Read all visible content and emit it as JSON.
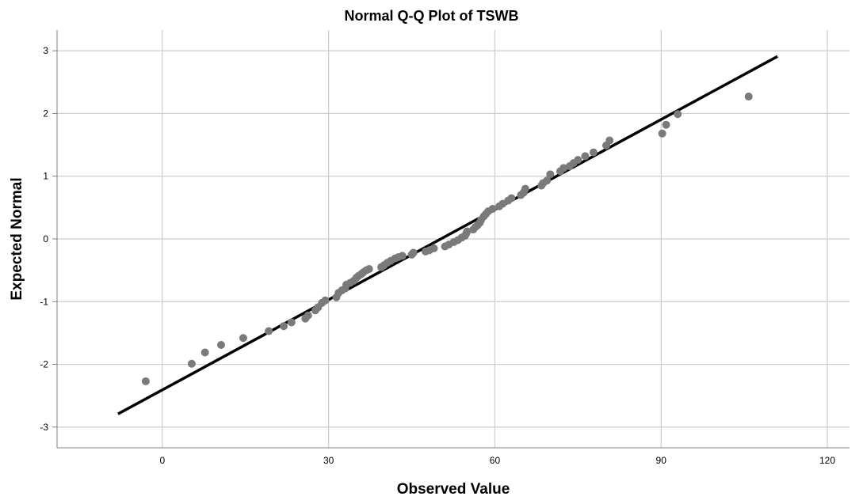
{
  "chart_data": {
    "type": "scatter",
    "title": "Normal Q-Q Plot of TSWB",
    "xlabel": "Observed Value",
    "ylabel": "Expected Normal",
    "xlim": [
      -19,
      124
    ],
    "ylim": [
      -3.33,
      3.33
    ],
    "xticks": [
      0,
      30,
      60,
      90,
      120
    ],
    "yticks": [
      -3,
      -2,
      -1,
      0,
      1,
      2,
      3
    ],
    "grid": true,
    "colors": {
      "points": "#7a7a7a",
      "line": "#000000",
      "grid": "#cccccc",
      "axis": "#808080"
    },
    "reference_line": {
      "x": [
        -8,
        111
      ],
      "y": [
        -2.79,
        2.91
      ]
    },
    "points": [
      [
        -3,
        -2.27
      ],
      [
        5.3,
        -1.99
      ],
      [
        7.7,
        -1.81
      ],
      [
        10.6,
        -1.69
      ],
      [
        14.6,
        -1.58
      ],
      [
        19.2,
        -1.47
      ],
      [
        21.9,
        -1.39
      ],
      [
        23.3,
        -1.33
      ],
      [
        25.8,
        -1.27
      ],
      [
        26.3,
        -1.22
      ],
      [
        27.6,
        -1.14
      ],
      [
        28.1,
        -1.09
      ],
      [
        28.8,
        -1.02
      ],
      [
        29.4,
        -0.98
      ],
      [
        31.4,
        -0.93
      ],
      [
        31.8,
        -0.86
      ],
      [
        32.4,
        -0.82
      ],
      [
        33.0,
        -0.79
      ],
      [
        33.2,
        -0.73
      ],
      [
        33.9,
        -0.7
      ],
      [
        34.5,
        -0.67
      ],
      [
        35.0,
        -0.62
      ],
      [
        35.4,
        -0.59
      ],
      [
        35.9,
        -0.56
      ],
      [
        36.3,
        -0.53
      ],
      [
        36.8,
        -0.5
      ],
      [
        37.3,
        -0.48
      ],
      [
        39.5,
        -0.45
      ],
      [
        40.0,
        -0.42
      ],
      [
        40.6,
        -0.38
      ],
      [
        41.2,
        -0.35
      ],
      [
        42.0,
        -0.31
      ],
      [
        42.6,
        -0.29
      ],
      [
        43.3,
        -0.27
      ],
      [
        45.0,
        -0.25
      ],
      [
        45.3,
        -0.22
      ],
      [
        47.5,
        -0.2
      ],
      [
        48.2,
        -0.18
      ],
      [
        49.0,
        -0.15
      ],
      [
        51.0,
        -0.12
      ],
      [
        51.7,
        -0.09
      ],
      [
        52.6,
        -0.05
      ],
      [
        53.3,
        -0.02
      ],
      [
        54.0,
        0.02
      ],
      [
        54.6,
        0.05
      ],
      [
        54.8,
        0.08
      ],
      [
        55.0,
        0.12
      ],
      [
        56.1,
        0.15
      ],
      [
        56.5,
        0.19
      ],
      [
        56.9,
        0.22
      ],
      [
        57.3,
        0.26
      ],
      [
        57.5,
        0.3
      ],
      [
        58.0,
        0.36
      ],
      [
        58.4,
        0.4
      ],
      [
        58.8,
        0.44
      ],
      [
        59.6,
        0.48
      ],
      [
        60.8,
        0.52
      ],
      [
        61.4,
        0.56
      ],
      [
        62.4,
        0.61
      ],
      [
        63.0,
        0.65
      ],
      [
        64.7,
        0.7
      ],
      [
        65.2,
        0.74
      ],
      [
        65.5,
        0.8
      ],
      [
        68.4,
        0.85
      ],
      [
        68.7,
        0.89
      ],
      [
        69.4,
        0.93
      ],
      [
        70.0,
        1.03
      ],
      [
        71.8,
        1.08
      ],
      [
        72.4,
        1.13
      ],
      [
        73.5,
        1.16
      ],
      [
        74.2,
        1.21
      ],
      [
        75.0,
        1.26
      ],
      [
        76.3,
        1.32
      ],
      [
        77.8,
        1.38
      ],
      [
        80.1,
        1.49
      ],
      [
        80.7,
        1.57
      ],
      [
        90.2,
        1.68
      ],
      [
        90.9,
        1.82
      ],
      [
        93.0,
        1.99
      ],
      [
        105.8,
        2.27
      ]
    ]
  }
}
